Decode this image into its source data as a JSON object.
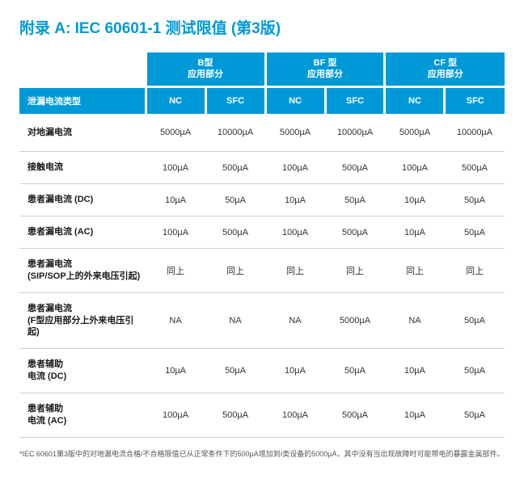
{
  "title": "附录 A: IEC 60601-1 测试限值 (第3版)",
  "groupHeaders": [
    "B型\n应用部分",
    "BF 型\n应用部分",
    "CF 型\n应用部分"
  ],
  "subHeaderLabel": "泄漏电流类型",
  "subHeaders": [
    "NC",
    "SFC",
    "NC",
    "SFC",
    "NC",
    "SFC"
  ],
  "rows": [
    {
      "label": "对地漏电流",
      "cells": [
        "5000µA",
        "10000µA",
        "5000µA",
        "10000µA",
        "5000µA",
        "10000µA"
      ]
    },
    {
      "label": "接触电流",
      "cells": [
        "100µA",
        "500µA",
        "100µA",
        "500µA",
        "100µA",
        "500µA"
      ]
    },
    {
      "label": "患者漏电流 (DC)",
      "cells": [
        "10µA",
        "50µA",
        "10µA",
        "50µA",
        "10µA",
        "50µA"
      ]
    },
    {
      "label": "患者漏电流 (AC)",
      "cells": [
        "100µA",
        "500µA",
        "100µA",
        "500µA",
        "10µA",
        "50µA"
      ]
    },
    {
      "label": "患者漏电流\n(SIP/SOP上的外来电压引起)",
      "cells": [
        "同上",
        "同上",
        "同上",
        "同上",
        "同上",
        "同上"
      ]
    },
    {
      "label": "患者漏电流\n(F型应用部分上外来电压引起)",
      "cells": [
        "NA",
        "NA",
        "NA",
        "5000µA",
        "NA",
        "50µA"
      ]
    },
    {
      "label": "患者辅助\n电流 (DC)",
      "cells": [
        "10µA",
        "50µA",
        "10µA",
        "50µA",
        "10µA",
        "50µA"
      ]
    },
    {
      "label": "患者辅助\n电流 (AC)",
      "cells": [
        "100µA",
        "500µA",
        "100µA",
        "500µA",
        "10µA",
        "50µA"
      ]
    }
  ],
  "footnote": "*IEC 60601第3版中的对地漏电流合格/不合格限值已从正常条件下的500µA增加到I类设备的5000µA，其中没有当出现故障时可能带电的暴露金属部件。",
  "colors": {
    "accent": "#0099d8",
    "text": "#333333",
    "border": "#d0d0d0"
  }
}
